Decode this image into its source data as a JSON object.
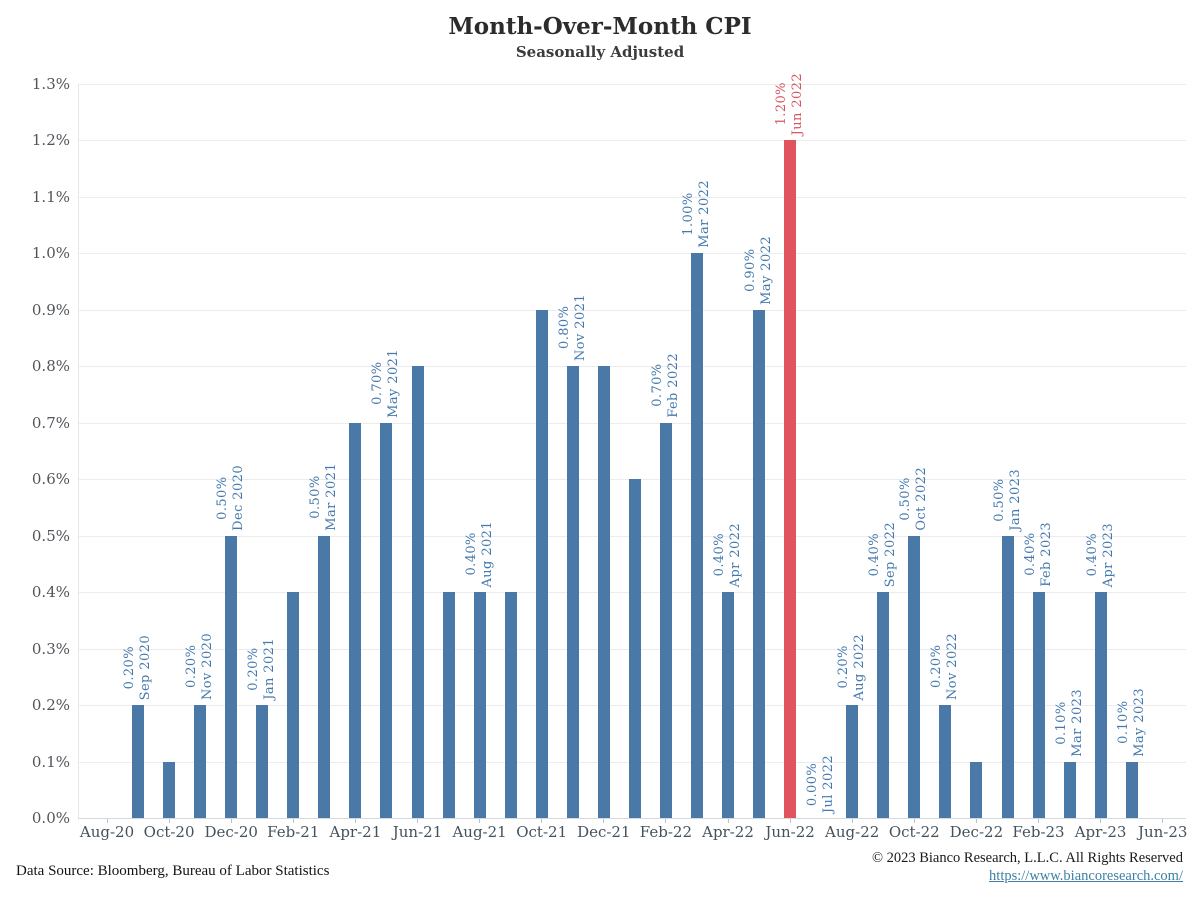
{
  "header": {
    "title": "Month-Over-Month CPI",
    "subtitle": "Seasonally Adjusted"
  },
  "footer": {
    "source": "Data Source: Bloomberg, Bureau of Labor Statistics",
    "copyright": "© 2023 Bianco Research, L.L.C. All Rights Reserved",
    "link": "https://www.biancoresearch.com/"
  },
  "colors": {
    "bar": "#4a79a8",
    "bar_label": "#4579ad",
    "highlight": "#e0545e",
    "highlight_label": "#d75460",
    "grid": "#ececec",
    "axis": "#d7dadd",
    "y_tick_text": "#51555a",
    "x_tick_text": "#45525c"
  },
  "chart_data": {
    "type": "bar",
    "title": "Month-Over-Month CPI",
    "subtitle": "Seasonally Adjusted",
    "xlabel": "",
    "ylabel": "",
    "ylim": [
      0,
      1.3
    ],
    "grid": "horizontal-only",
    "y_ticks": [
      "0.0%",
      "0.1%",
      "0.2%",
      "0.3%",
      "0.4%",
      "0.5%",
      "0.6%",
      "0.7%",
      "0.8%",
      "0.9%",
      "1.0%",
      "1.1%",
      "1.2%",
      "1.3%"
    ],
    "x_ticks": [
      "Aug-20",
      "Oct-20",
      "Dec-20",
      "Feb-21",
      "Apr-21",
      "Jun-21",
      "Aug-21",
      "Oct-21",
      "Dec-21",
      "Feb-22",
      "Apr-22",
      "Jun-22",
      "Aug-22",
      "Oct-22",
      "Dec-22",
      "Feb-23",
      "Apr-23",
      "Jun-23"
    ],
    "points": [
      {
        "month": "Sep 2020",
        "value": 0.2,
        "labeled": true,
        "value_label": "0.20%",
        "highlight": false
      },
      {
        "month": "Oct 2020",
        "value": 0.1,
        "labeled": false,
        "value_label": "",
        "highlight": false
      },
      {
        "month": "Nov 2020",
        "value": 0.2,
        "labeled": true,
        "value_label": "0.20%",
        "highlight": false
      },
      {
        "month": "Dec 2020",
        "value": 0.5,
        "labeled": true,
        "value_label": "0.50%",
        "highlight": false
      },
      {
        "month": "Jan 2021",
        "value": 0.2,
        "labeled": true,
        "value_label": "0.20%",
        "highlight": false
      },
      {
        "month": "Feb 2021",
        "value": 0.4,
        "labeled": false,
        "value_label": "",
        "highlight": false
      },
      {
        "month": "Mar 2021",
        "value": 0.5,
        "labeled": true,
        "value_label": "0.50%",
        "highlight": false
      },
      {
        "month": "Apr 2021",
        "value": 0.7,
        "labeled": false,
        "value_label": "",
        "highlight": false
      },
      {
        "month": "May 2021",
        "value": 0.7,
        "labeled": true,
        "value_label": "0.70%",
        "highlight": false
      },
      {
        "month": "Jun 2021",
        "value": 0.8,
        "labeled": false,
        "value_label": "",
        "highlight": false
      },
      {
        "month": "Jul 2021",
        "value": 0.4,
        "labeled": false,
        "value_label": "",
        "highlight": false
      },
      {
        "month": "Aug 2021",
        "value": 0.4,
        "labeled": true,
        "value_label": "0.40%",
        "highlight": false
      },
      {
        "month": "Sep 2021",
        "value": 0.4,
        "labeled": false,
        "value_label": "",
        "highlight": false
      },
      {
        "month": "Oct 2021",
        "value": 0.9,
        "labeled": false,
        "value_label": "",
        "highlight": false
      },
      {
        "month": "Nov 2021",
        "value": 0.8,
        "labeled": true,
        "value_label": "0.80%",
        "highlight": false
      },
      {
        "month": "Dec 2021",
        "value": 0.8,
        "labeled": false,
        "value_label": "",
        "highlight": false
      },
      {
        "month": "Jan 2022",
        "value": 0.6,
        "labeled": false,
        "value_label": "",
        "highlight": false
      },
      {
        "month": "Feb 2022",
        "value": 0.7,
        "labeled": true,
        "value_label": "0.70%",
        "highlight": false
      },
      {
        "month": "Mar 2022",
        "value": 1.0,
        "labeled": true,
        "value_label": "1.00%",
        "highlight": false
      },
      {
        "month": "Apr 2022",
        "value": 0.4,
        "labeled": true,
        "value_label": "0.40%",
        "highlight": false
      },
      {
        "month": "May 2022",
        "value": 0.9,
        "labeled": true,
        "value_label": "0.90%",
        "highlight": false
      },
      {
        "month": "Jun 2022",
        "value": 1.2,
        "labeled": true,
        "value_label": "1.20%",
        "highlight": true
      },
      {
        "month": "Jul 2022",
        "value": 0.0,
        "labeled": true,
        "value_label": "0.00%",
        "highlight": false
      },
      {
        "month": "Aug 2022",
        "value": 0.2,
        "labeled": true,
        "value_label": "0.20%",
        "highlight": false
      },
      {
        "month": "Sep 2022",
        "value": 0.4,
        "labeled": true,
        "value_label": "0.40%",
        "highlight": false
      },
      {
        "month": "Oct 2022",
        "value": 0.5,
        "labeled": true,
        "value_label": "0.50%",
        "highlight": false
      },
      {
        "month": "Nov 2022",
        "value": 0.2,
        "labeled": true,
        "value_label": "0.20%",
        "highlight": false
      },
      {
        "month": "Dec 2022",
        "value": 0.1,
        "labeled": false,
        "value_label": "",
        "highlight": false
      },
      {
        "month": "Jan 2023",
        "value": 0.5,
        "labeled": true,
        "value_label": "0.50%",
        "highlight": false
      },
      {
        "month": "Feb 2023",
        "value": 0.4,
        "labeled": true,
        "value_label": "0.40%",
        "highlight": false
      },
      {
        "month": "Mar 2023",
        "value": 0.1,
        "labeled": true,
        "value_label": "0.10%",
        "highlight": false
      },
      {
        "month": "Apr 2023",
        "value": 0.4,
        "labeled": true,
        "value_label": "0.40%",
        "highlight": false
      },
      {
        "month": "May 2023",
        "value": 0.1,
        "labeled": true,
        "value_label": "0.10%",
        "highlight": false
      }
    ]
  }
}
